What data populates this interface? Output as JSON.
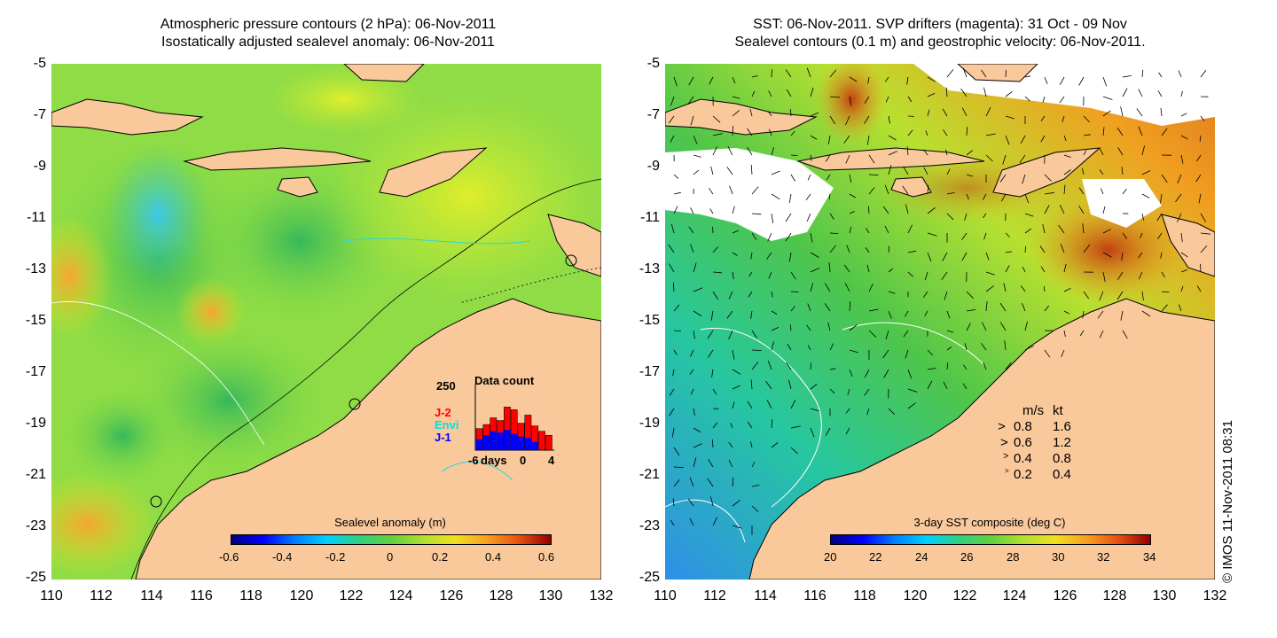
{
  "left_panel": {
    "title_line1": "Atmospheric pressure contours (2 hPa): 06-Nov-2011",
    "title_line2": "Isostatically adjusted sealevel anomaly: 06-Nov-2011",
    "y_ticks": [
      "-5",
      "-7",
      "-9",
      "-11",
      "-13",
      "-15",
      "-17",
      "-19",
      "-21",
      "-23",
      "-25"
    ],
    "x_ticks": [
      "110",
      "112",
      "114",
      "116",
      "118",
      "120",
      "122",
      "124",
      "126",
      "128",
      "130",
      "132"
    ],
    "colorbar": {
      "title": "Sealevel anomaly (m)",
      "labels": [
        "-0.6",
        "-0.4",
        "-0.2",
        "0",
        "0.2",
        "0.4",
        "0.6"
      ]
    },
    "inset": {
      "title": "Data count",
      "ymax_label": "250",
      "series_labels": [
        {
          "text": "J-2",
          "color": "#ff0000"
        },
        {
          "text": "Envi",
          "color": "#00e0e0"
        },
        {
          "text": "J-1",
          "color": "#0000ff"
        }
      ],
      "x_labels": [
        "-6",
        "days",
        "0",
        "4"
      ],
      "blue_counts": [
        40,
        55,
        70,
        65,
        75,
        60,
        50,
        45,
        30,
        0,
        0
      ],
      "red_counts": [
        80,
        95,
        120,
        110,
        160,
        150,
        100,
        130,
        90,
        70,
        55
      ]
    },
    "colors": {
      "land": "#f9c89b",
      "sea_base": "#9ee63a"
    }
  },
  "right_panel": {
    "title_line1": "SST: 06-Nov-2011. SVP drifters (magenta): 31 Oct - 09 Nov",
    "title_line2": "Sealevel contours (0.1 m) and geostrophic velocity: 06-Nov-2011.",
    "y_ticks": [
      "-5",
      "-7",
      "-9",
      "-11",
      "-13",
      "-15",
      "-17",
      "-19",
      "-21",
      "-23",
      "-25"
    ],
    "x_ticks": [
      "110",
      "112",
      "114",
      "116",
      "118",
      "120",
      "122",
      "124",
      "126",
      "128",
      "130",
      "132"
    ],
    "colorbar": {
      "title": "3-day SST composite (deg C)",
      "labels": [
        "20",
        "22",
        "24",
        "26",
        "28",
        "30",
        "32",
        "34"
      ]
    },
    "velocity_legend": {
      "header_ms": "m/s",
      "header_kt": "kt",
      "rows": [
        {
          "ms": "0.8",
          "kt": "1.6"
        },
        {
          "ms": "0.6",
          "kt": "1.2"
        },
        {
          "ms": "0.4",
          "kt": "0.8"
        },
        {
          "ms": "0.2",
          "kt": "0.4"
        }
      ]
    }
  },
  "copyright": "© IMOS 11-Nov-2011 08:31"
}
